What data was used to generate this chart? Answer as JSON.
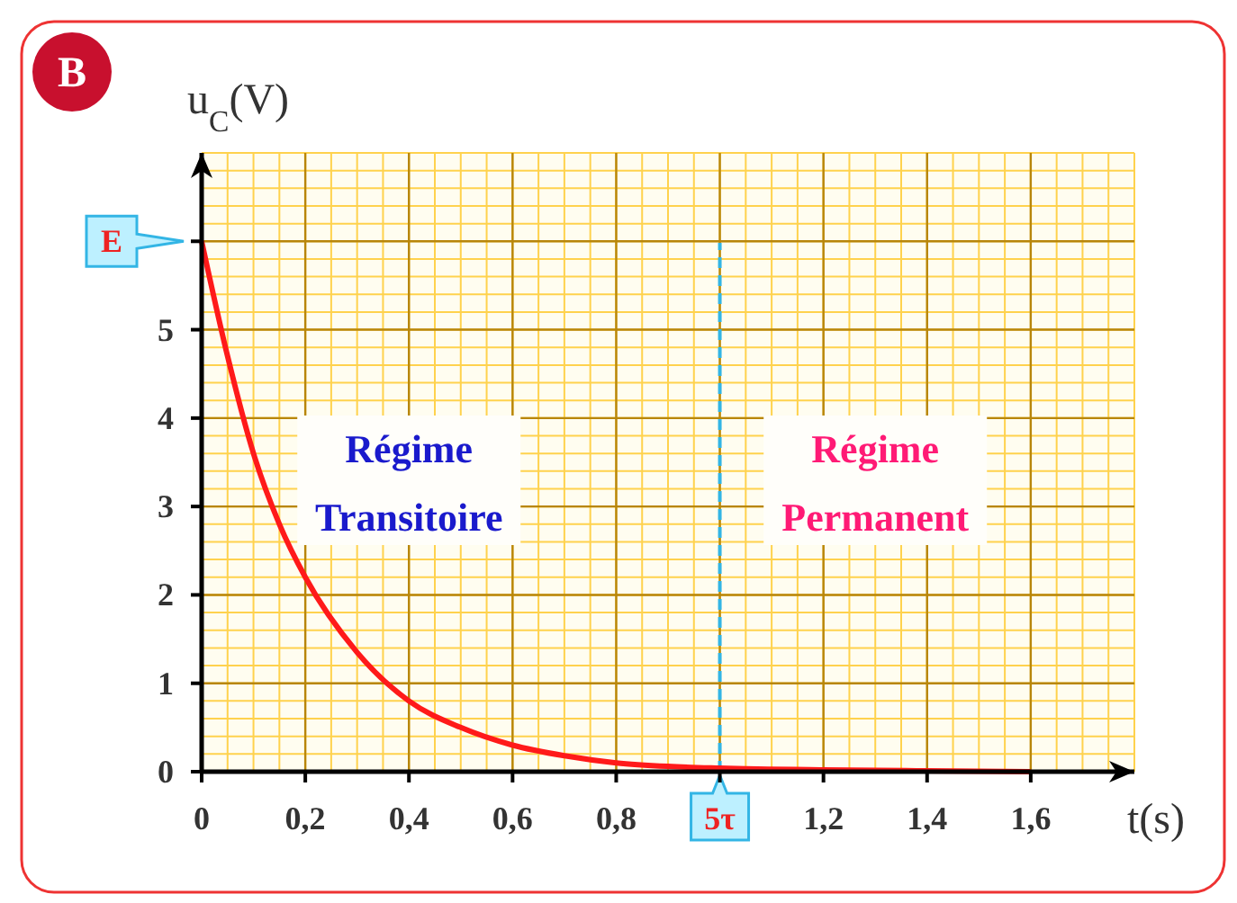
{
  "chart_data": {
    "type": "line",
    "title": "B",
    "xlabel": "t(s)",
    "ylabel": "u$_{C}$(V)",
    "x": [
      0,
      0.05,
      0.1,
      0.15,
      0.2,
      0.3,
      0.4,
      0.5,
      0.6,
      0.7,
      0.8,
      0.9,
      1,
      1.2,
      1.4,
      1.6
    ],
    "series": [
      {
        "color": "#ff1a1a",
        "values": [
          6,
          4.7,
          3.6,
          2.8,
          2.2,
          1.35,
          0.8,
          0.5,
          0.3,
          0.18,
          0.1,
          0.06,
          0.04,
          0.02,
          0.01,
          0
        ]
      }
    ],
    "xlim": [
      0,
      1.8
    ],
    "xticks": [
      0,
      {
        "value": 0.2,
        "label": "0,2"
      },
      {
        "value": 0.4,
        "label": "0,4"
      },
      {
        "value": 0.6,
        "label": "0,6"
      },
      {
        "value": 0.8,
        "label": "0,8"
      },
      {
        "value": 1,
        "label": null
      },
      {
        "value": 1.2,
        "label": "1,2"
      },
      {
        "value": 1.4,
        "label": "1,4"
      },
      {
        "value": 1.6,
        "label": "1,6"
      }
    ],
    "ylim": [
      0,
      7
    ],
    "yticks": [
      0,
      1,
      2,
      3,
      4,
      5,
      {
        "value": 6,
        "label": null
      }
    ],
    "ref_lines": [
      {
        "axis": "x",
        "value": 1,
        "color": "#33b5e5",
        "line_style": "dashed",
        "label": "5τ"
      }
    ],
    "annotations": [
      "Régime\nTransitoire",
      "Régime\nPermanent",
      {
        "text": "E",
        "x": 0,
        "y": 6
      }
    ],
    "grid": true,
    "marker": "none",
    "line_style": "solid"
  }
}
